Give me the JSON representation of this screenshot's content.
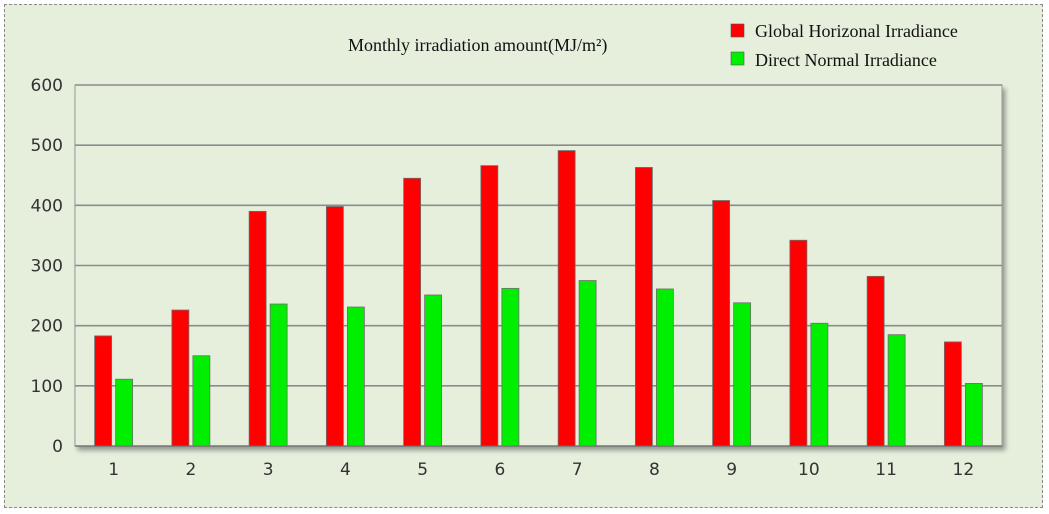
{
  "chart_data": {
    "type": "bar",
    "title": "Monthly irradiation amount(MJ/m²)",
    "categories": [
      "1",
      "2",
      "3",
      "4",
      "5",
      "6",
      "7",
      "8",
      "9",
      "10",
      "11",
      "12"
    ],
    "series": [
      {
        "name": "Global Horizonal Irradiance",
        "color": "#ff0000",
        "values": [
          183,
          226,
          390,
          398,
          445,
          466,
          491,
          463,
          408,
          342,
          282,
          173
        ]
      },
      {
        "name": "Direct Normal Irradiance",
        "color": "#00ee00",
        "values": [
          111,
          150,
          236,
          231,
          251,
          262,
          275,
          261,
          238,
          204,
          185,
          104
        ]
      }
    ],
    "ylim": [
      0,
      600
    ],
    "yticks": [
      "0",
      "100",
      "200",
      "300",
      "400",
      "500",
      "600"
    ],
    "grid": true,
    "legend_position": "top-right",
    "xlabel": "",
    "ylabel": ""
  }
}
